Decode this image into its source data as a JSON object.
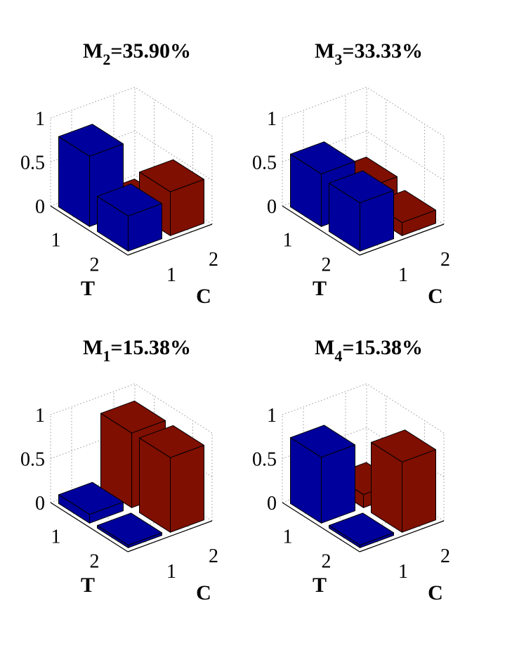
{
  "chart_data": [
    {
      "type": "bar3d",
      "title": "M",
      "title_subscript": "2",
      "title_suffix": "=35.90%",
      "xlabel": "T",
      "ylabel": "C",
      "xlim": [
        0.5,
        2.5
      ],
      "ylim": [
        0.5,
        2.5
      ],
      "xticks": [
        1,
        2
      ],
      "yticks": [
        1,
        2
      ],
      "zlim": [
        0,
        1
      ],
      "zticks": [
        0,
        0.5,
        1
      ],
      "grid": true,
      "colors": [
        "#00009c",
        "#7f0f00"
      ],
      "values": [
        [
          0.8,
          0
        ],
        [
          0.4,
          0.5
        ]
      ]
    },
    {
      "type": "bar3d",
      "title": "M",
      "title_subscript": "3",
      "title_suffix": "=33.33%",
      "xlabel": "T",
      "ylabel": "C",
      "xlim": [
        0.5,
        2.5
      ],
      "ylim": [
        0.5,
        2.5
      ],
      "xticks": [
        1,
        2
      ],
      "yticks": [
        1,
        2
      ],
      "zlim": [
        0,
        1
      ],
      "zticks": [
        0,
        0.5,
        1
      ],
      "grid": true,
      "colors": [
        "#00009c",
        "#7f0f00"
      ],
      "values": [
        [
          0.6,
          0.25
        ],
        [
          0.55,
          0.15
        ]
      ]
    },
    {
      "type": "bar3d",
      "title": "M",
      "title_subscript": "1",
      "title_suffix": "=15.38%",
      "xlabel": "T",
      "ylabel": "C",
      "xlim": [
        0.5,
        2.5
      ],
      "ylim": [
        0.5,
        2.5
      ],
      "xticks": [
        1,
        2
      ],
      "yticks": [
        1,
        2
      ],
      "zlim": [
        0,
        1
      ],
      "zticks": [
        0,
        0.5,
        1
      ],
      "grid": true,
      "colors": [
        "#00009c",
        "#7f0f00"
      ],
      "values": [
        [
          0.1,
          0.85
        ],
        [
          0.03,
          0.85
        ]
      ]
    },
    {
      "type": "bar3d",
      "title": "M",
      "title_subscript": "4",
      "title_suffix": "=15.38%",
      "xlabel": "T",
      "ylabel": "C",
      "xlim": [
        0.5,
        2.5
      ],
      "ylim": [
        0.5,
        2.5
      ],
      "xticks": [
        1,
        2
      ],
      "yticks": [
        1,
        2
      ],
      "zlim": [
        0,
        1
      ],
      "zticks": [
        0,
        0.5,
        1
      ],
      "grid": true,
      "colors": [
        "#00009c",
        "#7f0f00"
      ],
      "values": [
        [
          0.75,
          0.15
        ],
        [
          0.03,
          0.8
        ]
      ]
    }
  ]
}
